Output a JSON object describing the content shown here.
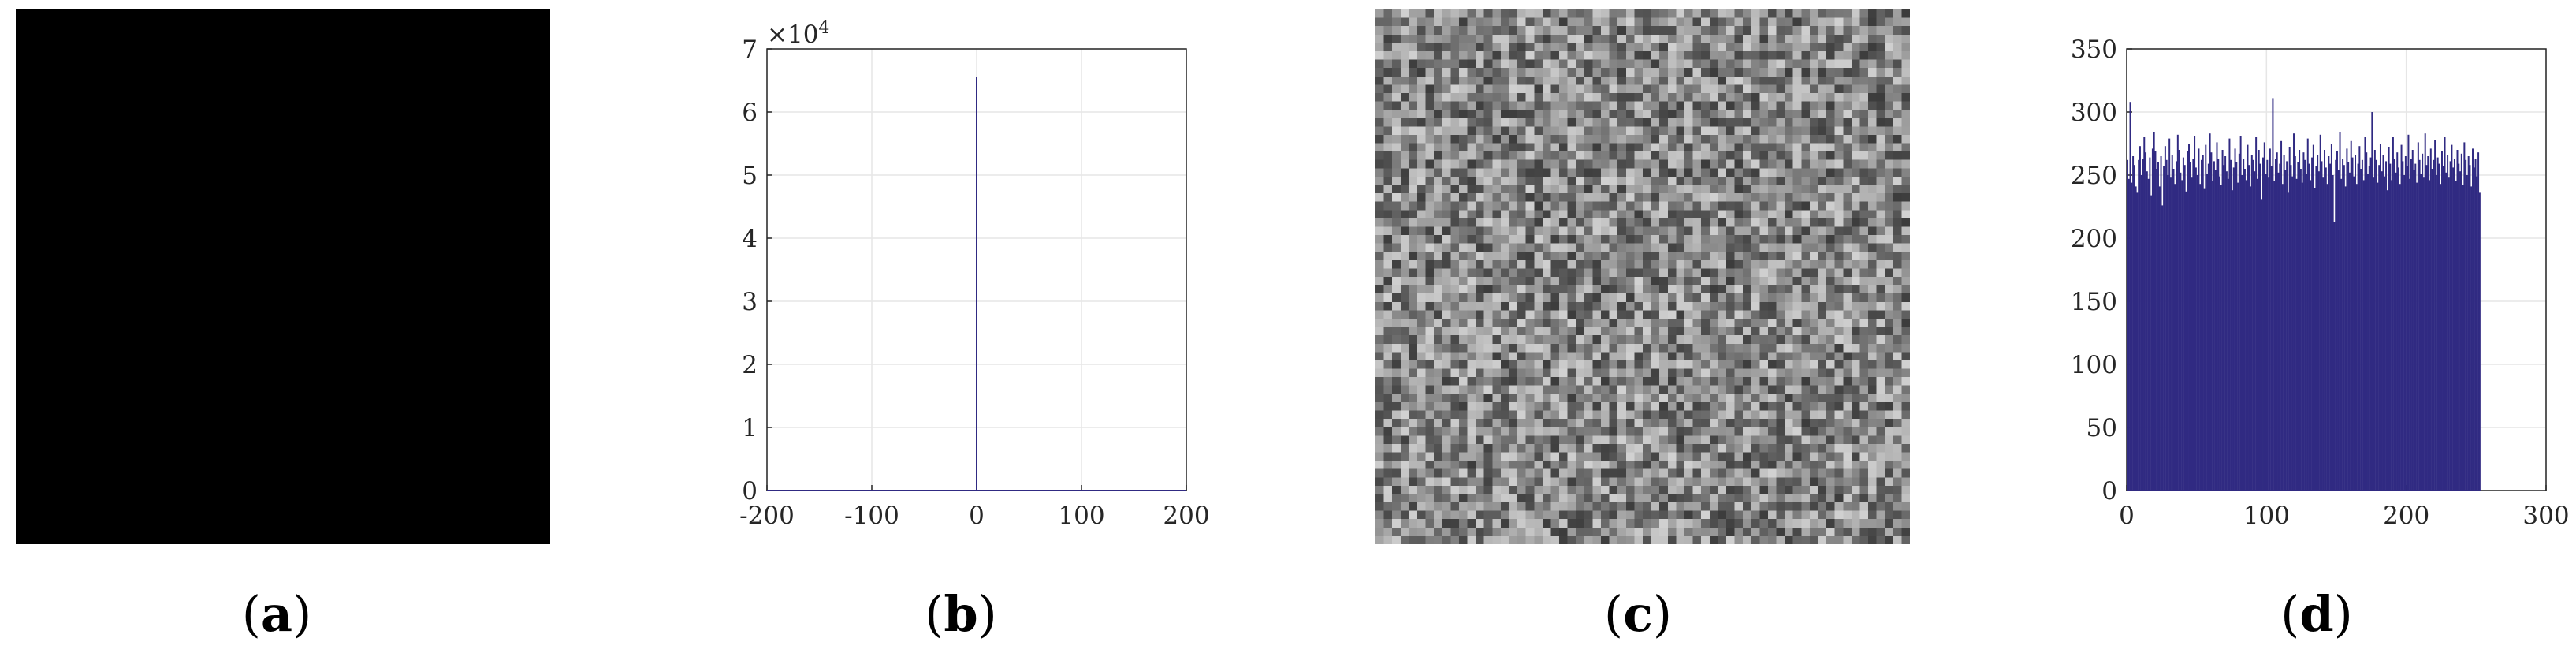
{
  "captions": {
    "a": {
      "open": "(",
      "letter": "a",
      "close": ")"
    },
    "b": {
      "open": "(",
      "letter": "b",
      "close": ")"
    },
    "c": {
      "open": "(",
      "letter": "c",
      "close": ")"
    },
    "d": {
      "open": "(",
      "letter": "d",
      "close": ")"
    }
  },
  "colors": {
    "series": "#302a82",
    "grid": "#e6e6e6",
    "image_a": "#000000"
  },
  "chart_data": [
    {
      "id": "b",
      "type": "bar",
      "title": "",
      "xlabel": "",
      "ylabel": "",
      "xlim": [
        -200,
        200
      ],
      "ylim": [
        0,
        7
      ],
      "y_multiplier": "×10",
      "y_multiplier_exp": "4",
      "xticks": [
        -200,
        -100,
        0,
        100,
        200
      ],
      "yticks": [
        0,
        1,
        2,
        3,
        4,
        5,
        6,
        7
      ],
      "grid": true,
      "series": [
        {
          "x": [
            0
          ],
          "values": [
            6.5536
          ]
        }
      ]
    },
    {
      "id": "d",
      "type": "bar",
      "title": "",
      "xlabel": "",
      "ylabel": "",
      "xlim": [
        0,
        300
      ],
      "ylim": [
        0,
        350
      ],
      "xticks": [
        0,
        100,
        200,
        300
      ],
      "yticks": [
        0,
        50,
        100,
        150,
        200,
        250,
        300,
        350
      ],
      "grid": true,
      "series": [
        {
          "x_start": 0,
          "values": [
            262,
            247,
            308,
            244,
            265,
            258,
            241,
            236,
            262,
            273,
            250,
            263,
            280,
            268,
            253,
            247,
            264,
            234,
            271,
            284,
            269,
            255,
            260,
            241,
            265,
            226,
            257,
            273,
            262,
            250,
            279,
            248,
            266,
            255,
            243,
            261,
            282,
            270,
            252,
            246,
            264,
            258,
            237,
            269,
            275,
            260,
            248,
            263,
            281,
            256,
            250,
            271,
            243,
            262,
            266,
            239,
            274,
            251,
            259,
            283,
            268,
            245,
            261,
            254,
            276,
            263,
            249,
            242,
            270,
            258,
            265,
            253,
            247,
            279,
            262,
            238,
            256,
            271,
            260,
            244,
            267,
            281,
            250,
            263,
            255,
            246,
            274,
            258,
            241,
            266,
            262,
            253,
            280,
            247,
            270,
            259,
            231,
            264,
            276,
            251,
            262,
            248,
            271,
            257,
            311,
            245,
            263,
            268,
            252,
            259,
            277,
            243,
            266,
            254,
            261,
            236,
            272,
            258,
            249,
            283,
            265,
            247,
            260,
            270,
            255,
            244,
            268,
            262,
            251,
            279,
            259,
            246,
            264,
            274,
            240,
            257,
            266,
            253,
            282,
            261,
            248,
            270,
            256,
            243,
            265,
            259,
            275,
            250,
            213,
            262,
            269,
            254,
            284,
            247,
            263,
            258,
            241,
            271,
            260,
            252,
            277,
            264,
            249,
            266,
            243,
            259,
            273,
            255,
            262,
            246,
            280,
            268,
            251,
            257,
            264,
            300,
            248,
            270,
            262,
            244,
            258,
            275,
            253,
            266,
            249,
            261,
            238,
            272,
            259,
            246,
            280,
            263,
            252,
            268,
            256,
            243,
            274,
            261,
            250,
            265,
            257,
            282,
            247,
            263,
            270,
            254,
            259,
            244,
            276,
            262,
            251,
            267,
            248,
            283,
            258,
            265,
            246,
            271,
            255,
            262,
            278,
            250,
            264,
            259,
            243,
            269,
            257,
            280,
            252,
            266,
            248,
            261,
            274,
            256,
            263,
            245,
            270,
            259,
            253,
            267,
            242,
            276,
            262,
            250,
            265,
            258,
            241,
            271,
            256,
            263,
            249,
            268,
            236
          ]
        }
      ]
    }
  ]
}
